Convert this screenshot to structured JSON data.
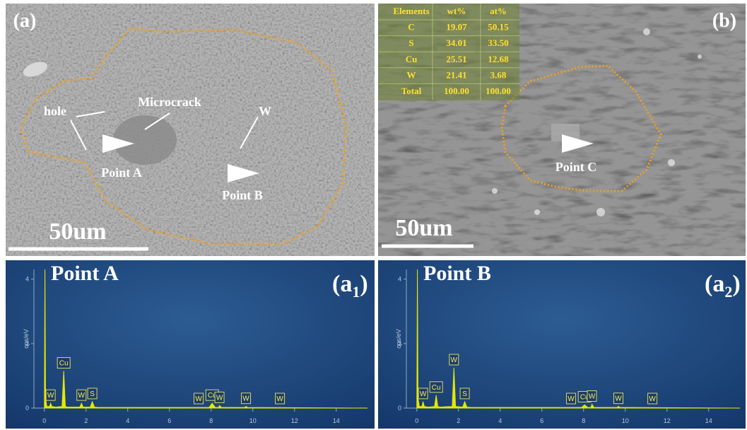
{
  "panel_a": {
    "label": "(a)",
    "scale_bar": "50um",
    "annotations": [
      "hole",
      "Microcrack",
      "W",
      "Point A",
      "Point B"
    ]
  },
  "panel_b": {
    "label": "(b)",
    "scale_bar": "50um",
    "annotation": "Point C",
    "table": {
      "header": [
        "Elements",
        "wt%",
        "at%"
      ],
      "rows": [
        [
          "C",
          "19.07",
          "50.15"
        ],
        [
          "S",
          "34.01",
          "33.50"
        ],
        [
          "Cu",
          "25.51",
          "12.68"
        ],
        [
          "W",
          "21.41",
          "3.68"
        ],
        [
          "Total",
          "100.00",
          "100.00"
        ]
      ]
    }
  },
  "spectra": [
    {
      "title": "Point A",
      "label": {
        "open": "(a",
        "sub": "1",
        "close": ")"
      },
      "y_label": "cps/eV",
      "xlim": [
        -0.5,
        15.5
      ],
      "ylim": [
        0,
        4.3
      ],
      "xticks": [
        0,
        2,
        4,
        6,
        8,
        10,
        12,
        14
      ],
      "yticks": [
        0,
        2,
        4
      ],
      "x": [
        0,
        0.03,
        0.06,
        0.12,
        0.25,
        0.3,
        0.36,
        0.55,
        0.85,
        0.93,
        1.01,
        1.1,
        1.7,
        1.78,
        1.86,
        2.2,
        2.3,
        2.4,
        2.6,
        7.9,
        8.05,
        8.2,
        8.35,
        8.4,
        8.5,
        9.6,
        9.67,
        9.75,
        15.5
      ],
      "y": [
        0,
        4.3,
        0.3,
        0.05,
        0.05,
        0.15,
        0.05,
        0.03,
        0.05,
        1.15,
        0.05,
        0.03,
        0.03,
        0.15,
        0.03,
        0.03,
        0.2,
        0.03,
        0.02,
        0.02,
        0.15,
        0.02,
        0.02,
        0.08,
        0.02,
        0.02,
        0.05,
        0.02,
        0
      ],
      "peaks": [
        {
          "label": "W",
          "x": 0.3
        },
        {
          "label": "Cu",
          "x": 0.93
        },
        {
          "label": "W",
          "x": 1.78
        },
        {
          "label": "S",
          "x": 2.3
        },
        {
          "label": "W",
          "x": 7.4
        },
        {
          "label": "Cu",
          "x": 8.05
        },
        {
          "label": "W",
          "x": 8.4
        },
        {
          "label": "W",
          "x": 9.67
        },
        {
          "label": "W",
          "x": 11.3
        }
      ]
    },
    {
      "title": "Point B",
      "label": {
        "open": "(a",
        "sub": "2",
        "close": ")"
      },
      "y_label": "cps/eV",
      "xlim": [
        -0.5,
        15.5
      ],
      "ylim": [
        0,
        4.3
      ],
      "xticks": [
        0,
        2,
        4,
        6,
        8,
        10,
        12,
        14
      ],
      "yticks": [
        0,
        2,
        4
      ],
      "x": [
        0,
        0.03,
        0.06,
        0.12,
        0.25,
        0.3,
        0.36,
        0.55,
        0.85,
        0.93,
        1.01,
        1.1,
        1.7,
        1.78,
        1.86,
        2.2,
        2.3,
        2.4,
        2.6,
        7.9,
        8.05,
        8.2,
        8.35,
        8.4,
        8.5,
        9.6,
        9.67,
        9.75,
        15.5
      ],
      "y": [
        0,
        4.3,
        0.3,
        0.05,
        0.05,
        0.2,
        0.05,
        0.03,
        0.05,
        0.4,
        0.05,
        0.03,
        0.05,
        1.25,
        0.05,
        0.03,
        0.2,
        0.03,
        0.02,
        0.02,
        0.1,
        0.02,
        0.02,
        0.12,
        0.02,
        0.02,
        0.05,
        0.02,
        0
      ],
      "peaks": [
        {
          "label": "W",
          "x": 0.3
        },
        {
          "label": "Cu",
          "x": 0.93
        },
        {
          "label": "W",
          "x": 1.78
        },
        {
          "label": "S",
          "x": 2.3
        },
        {
          "label": "W",
          "x": 7.4
        },
        {
          "label": "Cu",
          "x": 8.05
        },
        {
          "label": "W",
          "x": 8.4
        },
        {
          "label": "W",
          "x": 9.67
        },
        {
          "label": "W",
          "x": 11.3
        }
      ]
    }
  ]
}
